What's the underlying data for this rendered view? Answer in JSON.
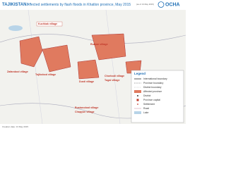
{
  "header": {
    "title": "TAJIKISTAN:",
    "subtitle": "Affected settlements by flash floods in Khatlon province, May 2015",
    "date": "(as of 13 May 2015)",
    "logo": "OCHA"
  },
  "map": {
    "labels": [
      "Kuchkak village",
      "Rumon village",
      "Zafarobod village",
      "Tojikobod village",
      "Dusti village",
      "Chorbodi village",
      "Tugai village",
      "Bustonobod village",
      "Chapyon village"
    ]
  },
  "legend": {
    "title": "Legend",
    "items": [
      "International boundary",
      "Province boundary",
      "District boundary",
      "Affected province",
      "District",
      "Province capital",
      "Settlement",
      "Road",
      "Lake"
    ]
  },
  "footer": {
    "text": "Creation date: 13 May 2015"
  }
}
